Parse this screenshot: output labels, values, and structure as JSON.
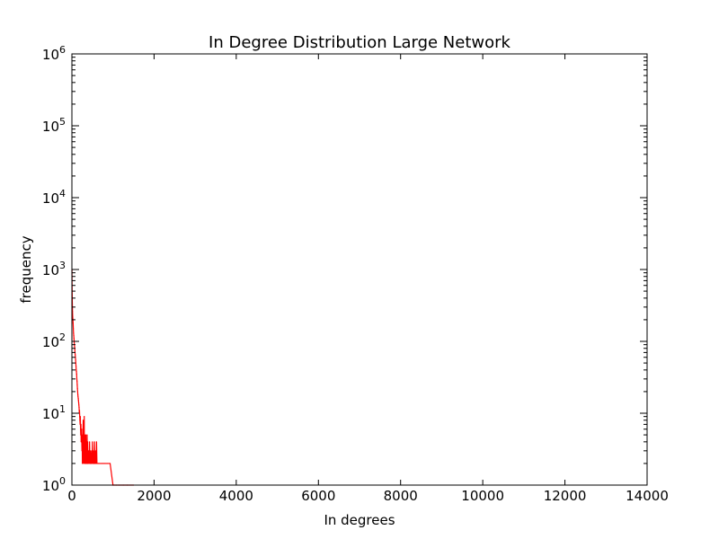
{
  "chart_data": {
    "type": "line",
    "title": "In Degree Distribution Large Network",
    "xlabel": "In degrees",
    "ylabel": "frequency",
    "xlim": [
      0,
      14000
    ],
    "ylim": [
      1,
      1000000
    ],
    "yscale": "log",
    "grid": false,
    "x_ticks": [
      0,
      2000,
      4000,
      6000,
      8000,
      10000,
      12000,
      14000
    ],
    "x_tick_labels": [
      "0",
      "2000",
      "4000",
      "6000",
      "8000",
      "10000",
      "12000",
      "14000"
    ],
    "y_ticks": [
      1,
      10,
      100,
      1000,
      10000,
      100000,
      1000000
    ],
    "y_tick_labels": [
      {
        "base": "10",
        "exp": "0"
      },
      {
        "base": "10",
        "exp": "1"
      },
      {
        "base": "10",
        "exp": "2"
      },
      {
        "base": "10",
        "exp": "3"
      },
      {
        "base": "10",
        "exp": "4"
      },
      {
        "base": "10",
        "exp": "5"
      },
      {
        "base": "10",
        "exp": "6"
      }
    ],
    "series": [
      {
        "color": "#ff0000",
        "points": [
          [
            1,
            1000
          ],
          [
            3,
            700
          ],
          [
            6,
            500
          ],
          [
            10,
            350
          ],
          [
            15,
            260
          ],
          [
            20,
            220
          ],
          [
            25,
            200
          ],
          [
            30,
            180
          ],
          [
            35,
            150
          ],
          [
            40,
            130
          ],
          [
            45,
            120
          ],
          [
            50,
            110
          ],
          [
            55,
            100
          ],
          [
            60,
            90
          ],
          [
            65,
            85
          ],
          [
            70,
            80
          ],
          [
            75,
            70
          ],
          [
            80,
            65
          ],
          [
            85,
            60
          ],
          [
            90,
            55
          ],
          [
            95,
            50
          ],
          [
            100,
            45
          ],
          [
            105,
            40
          ],
          [
            110,
            38
          ],
          [
            115,
            35
          ],
          [
            120,
            30
          ],
          [
            125,
            28
          ],
          [
            130,
            25
          ],
          [
            135,
            22
          ],
          [
            140,
            20
          ],
          [
            145,
            18
          ],
          [
            150,
            17
          ],
          [
            155,
            16
          ],
          [
            160,
            15
          ],
          [
            165,
            14
          ],
          [
            170,
            13
          ],
          [
            175,
            12
          ],
          [
            180,
            10
          ],
          [
            185,
            11
          ],
          [
            190,
            9
          ],
          [
            195,
            8
          ],
          [
            200,
            7
          ],
          [
            205,
            9
          ],
          [
            210,
            6
          ],
          [
            215,
            5
          ],
          [
            220,
            7
          ],
          [
            225,
            4
          ],
          [
            230,
            5
          ],
          [
            235,
            6
          ],
          [
            240,
            4
          ],
          [
            245,
            3
          ],
          [
            250,
            5
          ],
          [
            255,
            2
          ],
          [
            260,
            4
          ],
          [
            265,
            3
          ],
          [
            270,
            6
          ],
          [
            275,
            8
          ],
          [
            280,
            2
          ],
          [
            285,
            5
          ],
          [
            290,
            3
          ],
          [
            295,
            4
          ],
          [
            300,
            9
          ],
          [
            305,
            2
          ],
          [
            310,
            3
          ],
          [
            315,
            5
          ],
          [
            320,
            2
          ],
          [
            325,
            4
          ],
          [
            330,
            3
          ],
          [
            335,
            2
          ],
          [
            340,
            5
          ],
          [
            345,
            3
          ],
          [
            350,
            2
          ],
          [
            355,
            4
          ],
          [
            360,
            3
          ],
          [
            365,
            2
          ],
          [
            370,
            5
          ],
          [
            375,
            3
          ],
          [
            380,
            2
          ],
          [
            385,
            4
          ],
          [
            390,
            2
          ],
          [
            395,
            3
          ],
          [
            400,
            2
          ],
          [
            410,
            3
          ],
          [
            420,
            2
          ],
          [
            430,
            4
          ],
          [
            440,
            2
          ],
          [
            450,
            3
          ],
          [
            460,
            2
          ],
          [
            470,
            2
          ],
          [
            480,
            3
          ],
          [
            490,
            2
          ],
          [
            500,
            4
          ],
          [
            510,
            2
          ],
          [
            520,
            3
          ],
          [
            530,
            2
          ],
          [
            540,
            2
          ],
          [
            550,
            4
          ],
          [
            560,
            2
          ],
          [
            570,
            2
          ],
          [
            580,
            3
          ],
          [
            590,
            2
          ],
          [
            600,
            4
          ],
          [
            610,
            2
          ],
          [
            620,
            2
          ],
          [
            640,
            2
          ],
          [
            650,
            2
          ],
          [
            670,
            2
          ],
          [
            700,
            2
          ],
          [
            730,
            2
          ],
          [
            750,
            2
          ],
          [
            780,
            2
          ],
          [
            800,
            2
          ],
          [
            830,
            2
          ],
          [
            860,
            2
          ],
          [
            900,
            2
          ],
          [
            930,
            2
          ],
          [
            1000,
            1
          ],
          [
            1080,
            1
          ],
          [
            1150,
            1
          ],
          [
            1250,
            1
          ],
          [
            1350,
            1
          ],
          [
            1500,
            1
          ]
        ]
      }
    ]
  }
}
